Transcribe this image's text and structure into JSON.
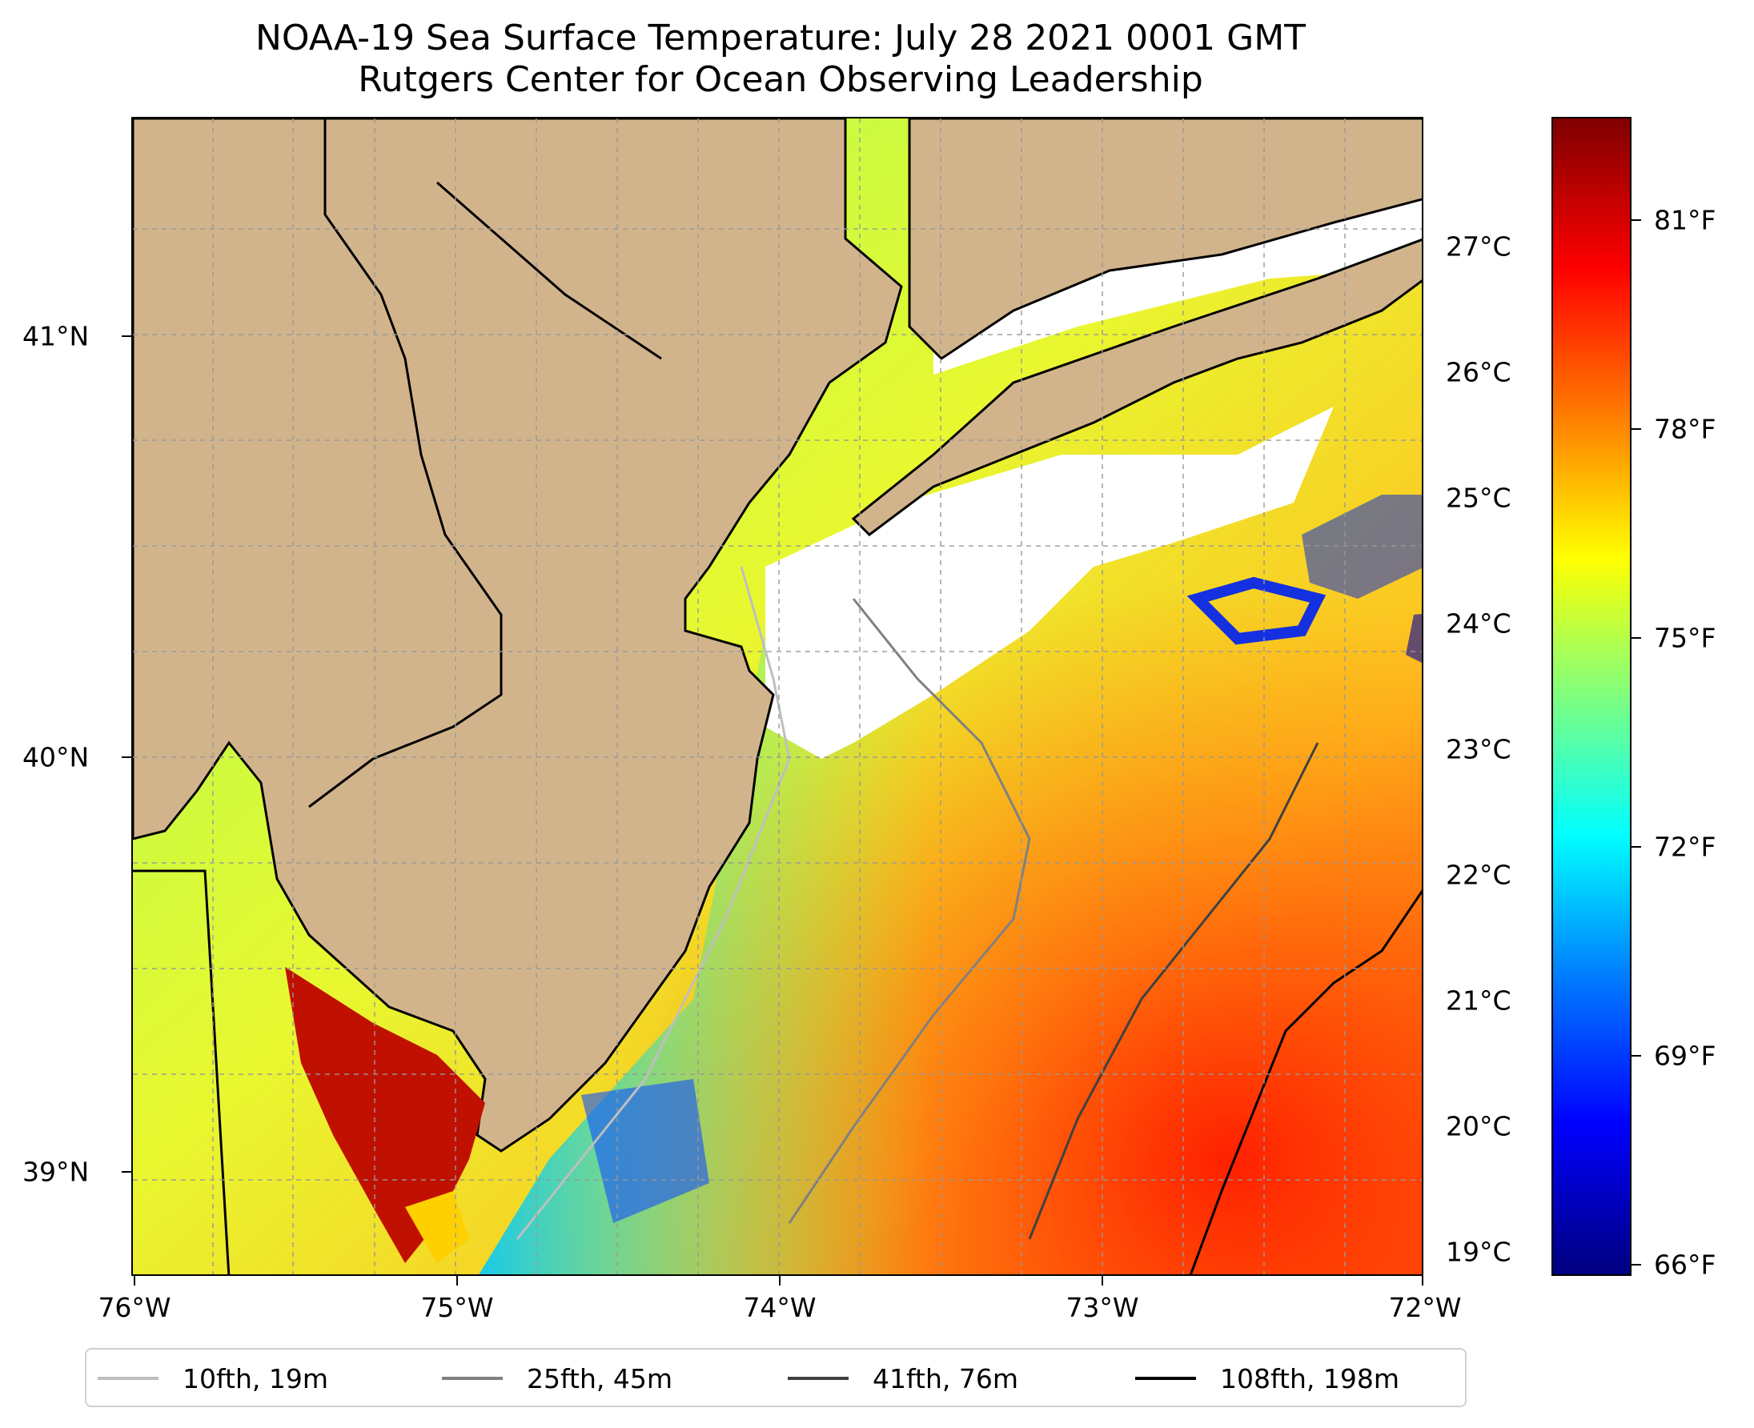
{
  "title": "NOAA-19 Sea Surface Temperature: July 28 2021 0001 GMT",
  "subtitle": "Rutgers Center for Ocean Observing Leadership",
  "map": {
    "lon_labels": [
      "76°W",
      "75°W",
      "74°W",
      "73°W",
      "72°W"
    ],
    "lat_labels": [
      "41°N",
      "40°N",
      "39°N"
    ],
    "extent": {
      "lon_min": -76.0,
      "lon_max": -72.0,
      "lat_min": 38.75,
      "lat_max": 41.5
    },
    "land_color": "#d2b48c",
    "cloud_color": "#ffffff",
    "gridlines": true
  },
  "colorbar": {
    "colormap": "jet",
    "range_f": [
      65.8,
      82.6
    ],
    "celsius_labels": [
      "27°C",
      "26°C",
      "25°C",
      "24°C",
      "23°C",
      "22°C",
      "21°C",
      "20°C",
      "19°C"
    ],
    "fahrenheit_labels": [
      "81°F",
      "78°F",
      "75°F",
      "72°F",
      "69°F",
      "66°F"
    ]
  },
  "legend": [
    {
      "label": "10fth, 19m",
      "color": "#bfbfbf"
    },
    {
      "label": "25fth, 45m",
      "color": "#808080"
    },
    {
      "label": "41fth, 76m",
      "color": "#404040"
    },
    {
      "label": "108fth, 198m",
      "color": "#000000"
    }
  ]
}
